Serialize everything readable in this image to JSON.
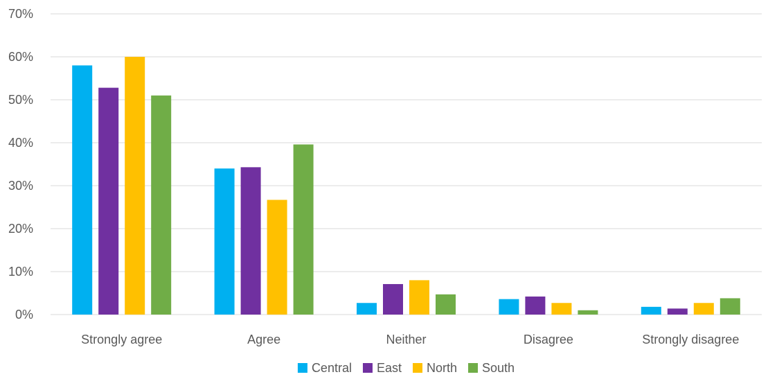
{
  "chart_data": {
    "type": "bar",
    "title": "",
    "xlabel": "",
    "ylabel": "",
    "ylim": [
      0,
      70
    ],
    "yticks": [
      "0%",
      "10%",
      "20%",
      "30%",
      "40%",
      "50%",
      "60%",
      "70%"
    ],
    "categories": [
      "Strongly agree",
      "Agree",
      "Neither",
      "Disagree",
      "Strongly disagree"
    ],
    "series": [
      {
        "name": "Central",
        "color": "#00b0f0",
        "values": [
          58,
          34,
          2.7,
          3.6,
          1.8
        ]
      },
      {
        "name": "East",
        "color": "#7030a0",
        "values": [
          52.8,
          34.3,
          7.1,
          4.2,
          1.4
        ]
      },
      {
        "name": "North",
        "color": "#ffc000",
        "values": [
          60,
          26.7,
          8,
          2.7,
          2.7
        ]
      },
      {
        "name": "South",
        "color": "#70ad47",
        "values": [
          51,
          39.6,
          4.7,
          1.0,
          3.8
        ]
      }
    ],
    "grid": true,
    "legend_position": "bottom"
  }
}
